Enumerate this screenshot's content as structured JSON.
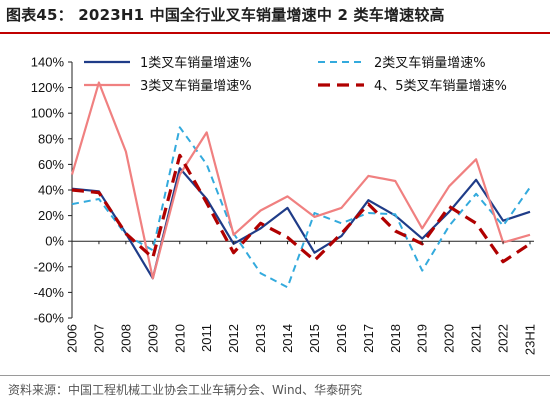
{
  "title": "图表45：  2023H1 中国全行业叉车销量增速中 2 类车增速较高",
  "source": "资料来源：中国工程机械工业协会工业车辆分会、Wind、华泰研究",
  "chart_data": {
    "type": "line",
    "categories": [
      "2006",
      "2007",
      "2008",
      "2009",
      "2010",
      "2011",
      "2012",
      "2013",
      "2014",
      "2015",
      "2016",
      "2017",
      "2018",
      "2019",
      "2020",
      "2021",
      "2022",
      "23H1"
    ],
    "ylim": [
      -60,
      140
    ],
    "yticks": [
      -60,
      -40,
      -20,
      0,
      20,
      40,
      60,
      80,
      100,
      120,
      140
    ],
    "ytick_labels": [
      "-60%",
      "-40%",
      "-20%",
      "0%",
      "20%",
      "40%",
      "60%",
      "80%",
      "100%",
      "120%",
      "140%"
    ],
    "xlabel": "",
    "ylabel": "",
    "grid": false,
    "legend_position": "top",
    "series": [
      {
        "name": "1类叉车销量增速%",
        "color": "#1f3c88",
        "dash": "solid",
        "values": [
          41,
          39,
          6,
          -29,
          57,
          33,
          -2,
          10,
          26,
          -9,
          4,
          32,
          20,
          2,
          23,
          48,
          16,
          23
        ]
      },
      {
        "name": "2类叉车销量增速%",
        "color": "#33aadd",
        "dash": "dash",
        "values": [
          29,
          33,
          5,
          -7,
          89,
          60,
          6,
          -25,
          -36,
          22,
          14,
          22,
          21,
          -23,
          12,
          37,
          12,
          42
        ]
      },
      {
        "name": "3类叉车销量增速%",
        "color": "#f08080",
        "dash": "solid",
        "values": [
          52,
          124,
          70,
          -29,
          52,
          85,
          5,
          24,
          35,
          19,
          26,
          51,
          47,
          10,
          43,
          64,
          -1,
          5
        ]
      },
      {
        "name": "4、5类叉车销量增速%",
        "color": "#b00000",
        "dash": "longdash",
        "values": [
          40,
          38,
          6,
          -13,
          67,
          30,
          -9,
          14,
          3,
          -15,
          6,
          29,
          8,
          -2,
          27,
          14,
          -16,
          -2
        ]
      }
    ]
  }
}
